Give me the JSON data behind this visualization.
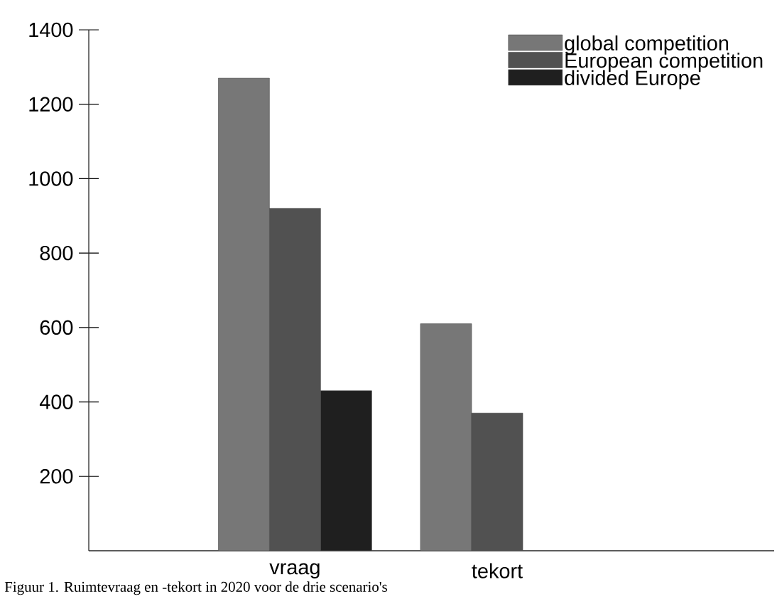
{
  "chart_data": {
    "type": "bar",
    "categories": [
      "vraag",
      "tekort"
    ],
    "series": [
      {
        "name": "global competition",
        "color": "#777777",
        "values": [
          1270,
          610
        ]
      },
      {
        "name": "European competition",
        "color": "#515151",
        "values": [
          920,
          370
        ]
      },
      {
        "name": "divided Europe",
        "color": "#1f1f1f",
        "values": [
          430,
          null
        ]
      }
    ],
    "ylim": [
      0,
      1400
    ],
    "yticks": [
      200,
      400,
      600,
      800,
      1000,
      1200,
      1400
    ],
    "legend": "top right",
    "grid": false,
    "annotations": [
      "Figuur 1. Ruimtevraag en -tekort in 2020 voor de drie scenario's"
    ]
  }
}
